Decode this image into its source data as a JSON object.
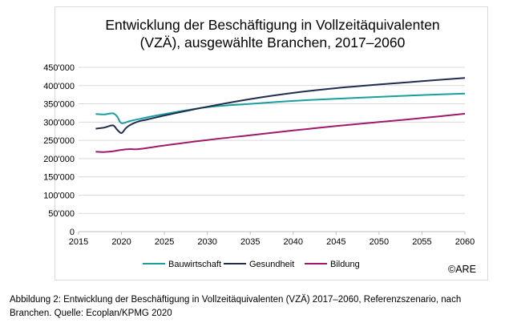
{
  "caption": {
    "line1": "Abbildung 2: Entwicklung der Beschäftigung in Vollzeitäquivalenten (VZÄ) 2017–2060, Referenzszenario, nach",
    "line2": "Branchen. Quelle: Ecoplan/KPMG 2020"
  },
  "chart_data": {
    "type": "line",
    "title": [
      "Entwicklung der Beschäftigung in Vollzeitäquivalenten",
      "(VZÄ), ausgewählte Branchen, 2017–2060"
    ],
    "xlabel": "",
    "ylabel": "",
    "xlim": [
      2015,
      2060
    ],
    "ylim": [
      0,
      450000
    ],
    "x_ticks": [
      "2015",
      "2020",
      "2025",
      "2030",
      "2035",
      "2040",
      "2045",
      "2050",
      "2055",
      "2060"
    ],
    "y_ticks": [
      "0",
      "50'000",
      "100'000",
      "150'000",
      "200'000",
      "250'000",
      "300'000",
      "350'000",
      "400'000",
      "450'000"
    ],
    "grid": "horizontal",
    "legend_position": "bottom",
    "credit": "©ARE",
    "series": [
      {
        "name": "Bauwirtschaft",
        "color": "#1a9e9e",
        "x": [
          2017,
          2018,
          2019,
          2019.5,
          2020,
          2021,
          2022,
          2023,
          2025,
          2030,
          2035,
          2040,
          2045,
          2050,
          2055,
          2060
        ],
        "y": [
          322000,
          321000,
          324000,
          315000,
          297000,
          303000,
          308000,
          313000,
          322000,
          341000,
          350000,
          358000,
          364000,
          369000,
          374000,
          378000
        ]
      },
      {
        "name": "Gesundheit",
        "color": "#1f2d4e",
        "x": [
          2017,
          2018,
          2019,
          2019.5,
          2020,
          2020.5,
          2021,
          2022,
          2023,
          2025,
          2030,
          2035,
          2040,
          2045,
          2050,
          2055,
          2060
        ],
        "y": [
          282000,
          285000,
          291000,
          279000,
          270000,
          283000,
          292000,
          302000,
          307000,
          318000,
          342000,
          363000,
          380000,
          393000,
          403000,
          412000,
          421000
        ]
      },
      {
        "name": "Bildung",
        "color": "#9e1a6b",
        "x": [
          2017,
          2018,
          2019,
          2020,
          2021,
          2022,
          2025,
          2030,
          2035,
          2040,
          2045,
          2050,
          2055,
          2060
        ],
        "y": [
          219000,
          218000,
          220000,
          224000,
          226000,
          226000,
          236000,
          251000,
          264000,
          277000,
          289000,
          300000,
          311000,
          323000
        ]
      }
    ]
  }
}
